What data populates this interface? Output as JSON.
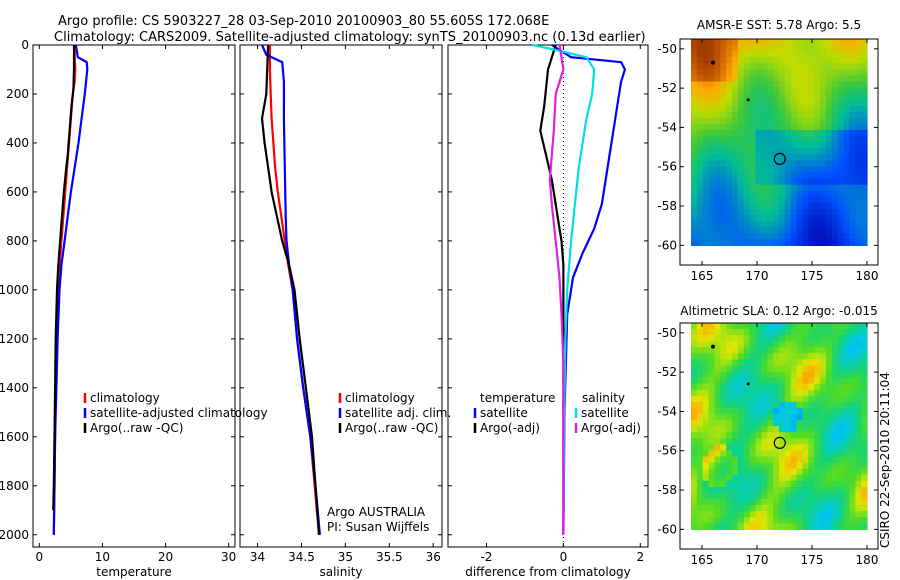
{
  "header": {
    "line1": "Argo profile: CS 5903227_28 03-Sep-2010 20100903_80 55.605S 172.068E",
    "line2": "Climatology: CARS2009. Satellite-adjusted climatology: synTS_20100903.nc (0.13d earlier)"
  },
  "side_stamp": "CSIRO 22-Sep-2010 20:11:04",
  "colors": {
    "climatology": "#ff0000",
    "satellite": "#0000ff",
    "argo": "#000000",
    "sat_salinity": "#00e0e0",
    "argo_salinity": "#e020e0"
  },
  "chart_data": [
    {
      "type": "line",
      "title": "",
      "xlabel": "temperature",
      "ylabel": "",
      "xlim": [
        -1,
        31
      ],
      "ylim": [
        2050,
        0
      ],
      "xticks": [
        "0",
        "10",
        "20",
        "30"
      ],
      "yticks": [
        "0",
        "200",
        "400",
        "600",
        "800",
        "1000",
        "1200",
        "1400",
        "1600",
        "1800",
        "2000"
      ],
      "legend": [
        "climatology",
        "satellite-adjusted climatology",
        "Argo(..raw -QC)"
      ],
      "series": [
        {
          "name": "climatology",
          "color": "#ff0000",
          "points": [
            [
              5.6,
              0
            ],
            [
              5.6,
              50
            ],
            [
              5.7,
              100
            ],
            [
              5.6,
              150
            ],
            [
              5.3,
              200
            ],
            [
              5.0,
              300
            ],
            [
              4.7,
              400
            ],
            [
              4.4,
              500
            ],
            [
              4.1,
              600
            ],
            [
              3.8,
              700
            ],
            [
              3.5,
              800
            ],
            [
              3.2,
              900
            ],
            [
              3.0,
              1000
            ],
            [
              2.8,
              1200
            ],
            [
              2.6,
              1400
            ],
            [
              2.5,
              1600
            ],
            [
              2.4,
              1800
            ],
            [
              2.3,
              2000
            ]
          ]
        },
        {
          "name": "satellite-adjusted climatology",
          "color": "#0000ff",
          "points": [
            [
              5.8,
              0
            ],
            [
              6.1,
              50
            ],
            [
              7.5,
              70
            ],
            [
              7.6,
              100
            ],
            [
              7.2,
              200
            ],
            [
              6.7,
              300
            ],
            [
              6.2,
              400
            ],
            [
              5.6,
              500
            ],
            [
              5.0,
              600
            ],
            [
              4.5,
              700
            ],
            [
              4.0,
              800
            ],
            [
              3.5,
              900
            ],
            [
              3.2,
              1000
            ],
            [
              2.9,
              1200
            ],
            [
              2.7,
              1400
            ],
            [
              2.5,
              1600
            ],
            [
              2.4,
              1800
            ],
            [
              2.3,
              2000
            ]
          ]
        },
        {
          "name": "Argo(..raw -QC)",
          "color": "#000000",
          "points": [
            [
              5.5,
              0
            ],
            [
              5.5,
              100
            ],
            [
              5.4,
              180
            ],
            [
              5.1,
              250
            ],
            [
              4.8,
              350
            ],
            [
              4.5,
              450
            ],
            [
              4.2,
              520
            ],
            [
              3.9,
              600
            ],
            [
              3.6,
              700
            ],
            [
              3.3,
              800
            ],
            [
              3.0,
              900
            ],
            [
              2.8,
              1000
            ],
            [
              2.6,
              1200
            ],
            [
              2.5,
              1400
            ],
            [
              2.4,
              1600
            ],
            [
              2.3,
              1800
            ],
            [
              2.2,
              1900
            ]
          ]
        }
      ]
    },
    {
      "type": "line",
      "title": "",
      "xlabel": "salinity",
      "ylabel": "",
      "xlim": [
        33.8,
        36.1
      ],
      "ylim": [
        2050,
        0
      ],
      "xticks": [
        "34",
        "34.5",
        "35",
        "35.5",
        "36"
      ],
      "yticks": [],
      "legend": [
        "climatology",
        "satellite adj. clim.",
        "Argo(..raw -QC)"
      ],
      "series": [
        {
          "name": "climatology",
          "color": "#ff0000",
          "points": [
            [
              34.14,
              0
            ],
            [
              34.14,
              100
            ],
            [
              34.15,
              200
            ],
            [
              34.16,
              300
            ],
            [
              34.18,
              400
            ],
            [
              34.2,
              500
            ],
            [
              34.23,
              600
            ],
            [
              34.27,
              700
            ],
            [
              34.31,
              800
            ],
            [
              34.35,
              900
            ],
            [
              34.4,
              1000
            ],
            [
              34.45,
              1200
            ],
            [
              34.52,
              1400
            ],
            [
              34.6,
              1600
            ],
            [
              34.65,
              1800
            ],
            [
              34.7,
              2000
            ]
          ]
        },
        {
          "name": "satellite adj. clim.",
          "color": "#0000ff",
          "points": [
            [
              34.05,
              0
            ],
            [
              34.1,
              40
            ],
            [
              34.28,
              70
            ],
            [
              34.3,
              150
            ],
            [
              34.3,
              300
            ],
            [
              34.31,
              500
            ],
            [
              34.32,
              700
            ],
            [
              34.33,
              800
            ],
            [
              34.36,
              900
            ],
            [
              34.4,
              1000
            ],
            [
              34.45,
              1200
            ],
            [
              34.52,
              1400
            ],
            [
              34.6,
              1600
            ],
            [
              34.66,
              1800
            ],
            [
              34.71,
              2000
            ]
          ]
        },
        {
          "name": "Argo(..raw -QC)",
          "color": "#000000",
          "points": [
            [
              34.12,
              0
            ],
            [
              34.1,
              200
            ],
            [
              34.05,
              300
            ],
            [
              34.08,
              400
            ],
            [
              34.12,
              500
            ],
            [
              34.16,
              600
            ],
            [
              34.22,
              700
            ],
            [
              34.28,
              800
            ],
            [
              34.36,
              900
            ],
            [
              34.42,
              1000
            ],
            [
              34.48,
              1200
            ],
            [
              34.55,
              1400
            ],
            [
              34.62,
              1600
            ],
            [
              34.66,
              1800
            ],
            [
              34.7,
              2000
            ]
          ]
        }
      ],
      "annotations": [
        "Argo AUSTRALIA",
        "PI: Susan Wijffels"
      ]
    },
    {
      "type": "line",
      "title": "",
      "xlabel": "difference from climatology",
      "ylabel": "",
      "xlim": [
        -3.0,
        2.2
      ],
      "ylim": [
        2050,
        0
      ],
      "xticks": [
        "-2",
        "0",
        "2"
      ],
      "yticks": [],
      "legend_left_title": "temperature",
      "legend_right_title": "salinity",
      "legend": [
        "satellite",
        "Argo(-adj)",
        "satellite",
        "Argo(-adj)"
      ],
      "series": [
        {
          "name": "temperature satellite",
          "color": "#0000ff",
          "points": [
            [
              -0.3,
              0
            ],
            [
              0.2,
              50
            ],
            [
              1.5,
              70
            ],
            [
              1.6,
              100
            ],
            [
              1.5,
              150
            ],
            [
              1.4,
              250
            ],
            [
              1.3,
              350
            ],
            [
              1.2,
              450
            ],
            [
              1.1,
              550
            ],
            [
              1.0,
              650
            ],
            [
              0.8,
              750
            ],
            [
              0.5,
              850
            ],
            [
              0.25,
              950
            ],
            [
              0.1,
              1100
            ],
            [
              0.03,
              1500
            ],
            [
              0.0,
              2000
            ]
          ]
        },
        {
          "name": "temperature Argo(-adj)",
          "color": "#000000",
          "points": [
            [
              -0.2,
              0
            ],
            [
              -0.4,
              100
            ],
            [
              -0.5,
              250
            ],
            [
              -0.6,
              350
            ],
            [
              -0.45,
              450
            ],
            [
              -0.3,
              550
            ],
            [
              -0.2,
              650
            ],
            [
              -0.1,
              750
            ],
            [
              -0.05,
              800
            ],
            [
              0.0,
              900
            ],
            [
              0.0,
              2000
            ]
          ]
        },
        {
          "name": "salinity satellite",
          "color": "#00e0e0",
          "points": [
            [
              -0.8,
              0
            ],
            [
              -0.2,
              20
            ],
            [
              0.6,
              50
            ],
            [
              0.8,
              100
            ],
            [
              0.75,
              200
            ],
            [
              0.6,
              300
            ],
            [
              0.5,
              400
            ],
            [
              0.4,
              500
            ],
            [
              0.3,
              650
            ],
            [
              0.2,
              800
            ],
            [
              0.1,
              1000
            ],
            [
              0.05,
              1200
            ],
            [
              0.02,
              1500
            ],
            [
              0.0,
              2000
            ]
          ]
        },
        {
          "name": "salinity Argo(-adj)",
          "color": "#e020e0",
          "points": [
            [
              -0.1,
              0
            ],
            [
              0.0,
              100
            ],
            [
              -0.2,
              200
            ],
            [
              -0.25,
              350
            ],
            [
              -0.3,
              450
            ],
            [
              -0.35,
              550
            ],
            [
              -0.3,
              650
            ],
            [
              -0.2,
              800
            ],
            [
              -0.1,
              950
            ],
            [
              -0.05,
              1100
            ],
            [
              0.0,
              1300
            ],
            [
              0.0,
              2000
            ]
          ]
        }
      ]
    },
    {
      "type": "heatmap",
      "title": "AMSR-E SST: 5.78 Argo: 5.5",
      "xlim": [
        163,
        181
      ],
      "ylim": [
        -61,
        -49.5
      ],
      "xticks": [
        "165",
        "170",
        "175",
        "180"
      ],
      "yticks": [
        "-50",
        "-52",
        "-54",
        "-56",
        "-58",
        "-60"
      ],
      "marker": {
        "lon": 172.07,
        "lat": -55.6
      }
    },
    {
      "type": "heatmap",
      "title": "Altimetric SLA: 0.12 Argo: -0.015",
      "xlim": [
        163,
        181
      ],
      "ylim": [
        -61,
        -49.5
      ],
      "xticks": [
        "165",
        "170",
        "175",
        "180"
      ],
      "yticks": [
        "-50",
        "-52",
        "-54",
        "-56",
        "-58",
        "-60"
      ],
      "marker": {
        "lon": 172.07,
        "lat": -55.6
      }
    }
  ]
}
